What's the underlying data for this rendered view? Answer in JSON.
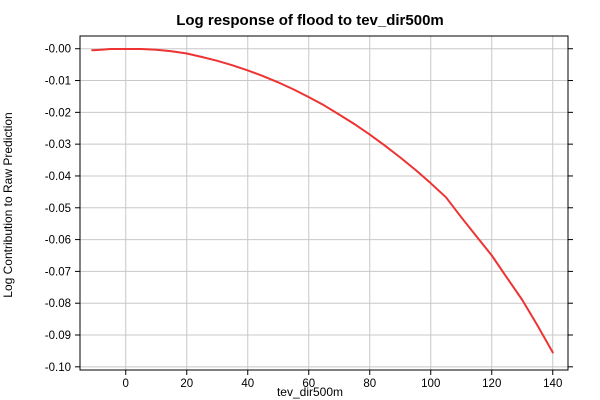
{
  "chart_data": {
    "type": "line",
    "title": "Log response of flood to tev_dir500m",
    "xlabel": "tev_dir500m",
    "ylabel": "Log Contribution to Raw Prediction",
    "xlim": [
      -15,
      145
    ],
    "ylim": [
      -0.101,
      0.004
    ],
    "x_ticks": [
      0,
      20,
      40,
      60,
      80,
      100,
      120,
      140
    ],
    "x_tick_labels": [
      "0",
      "20",
      "40",
      "60",
      "80",
      "100",
      "120",
      "140"
    ],
    "y_ticks": [
      0,
      -0.01,
      -0.02,
      -0.03,
      -0.04,
      -0.05,
      -0.06,
      -0.07,
      -0.08,
      -0.09,
      -0.1
    ],
    "y_tick_labels": [
      "-0.00",
      "-0.01",
      "-0.02",
      "-0.03",
      "-0.04",
      "-0.05",
      "-0.06",
      "-0.07",
      "-0.08",
      "-0.09",
      "-0.10"
    ],
    "grid": true,
    "series": [
      {
        "color": "#ee3333",
        "x": [
          -11,
          -8,
          -5,
          0,
          3,
          5,
          10,
          15,
          20,
          25,
          30,
          35,
          40,
          45,
          50,
          55,
          60,
          65,
          70,
          75,
          80,
          85,
          90,
          95,
          100,
          105,
          110,
          115,
          120,
          125,
          130,
          135,
          140
        ],
        "y": [
          -0.0005,
          -0.0003,
          -0.0001,
          -0.0001,
          -0.0001,
          -0.0001,
          -0.0003,
          -0.0008,
          -0.0015,
          -0.0026,
          -0.0038,
          -0.0052,
          -0.0068,
          -0.0086,
          -0.0106,
          -0.0128,
          -0.0152,
          -0.0178,
          -0.0207,
          -0.0237,
          -0.027,
          -0.0305,
          -0.0342,
          -0.0381,
          -0.0423,
          -0.0467,
          -0.053,
          -0.059,
          -0.065,
          -0.072,
          -0.079,
          -0.087,
          -0.0955
        ]
      }
    ]
  }
}
